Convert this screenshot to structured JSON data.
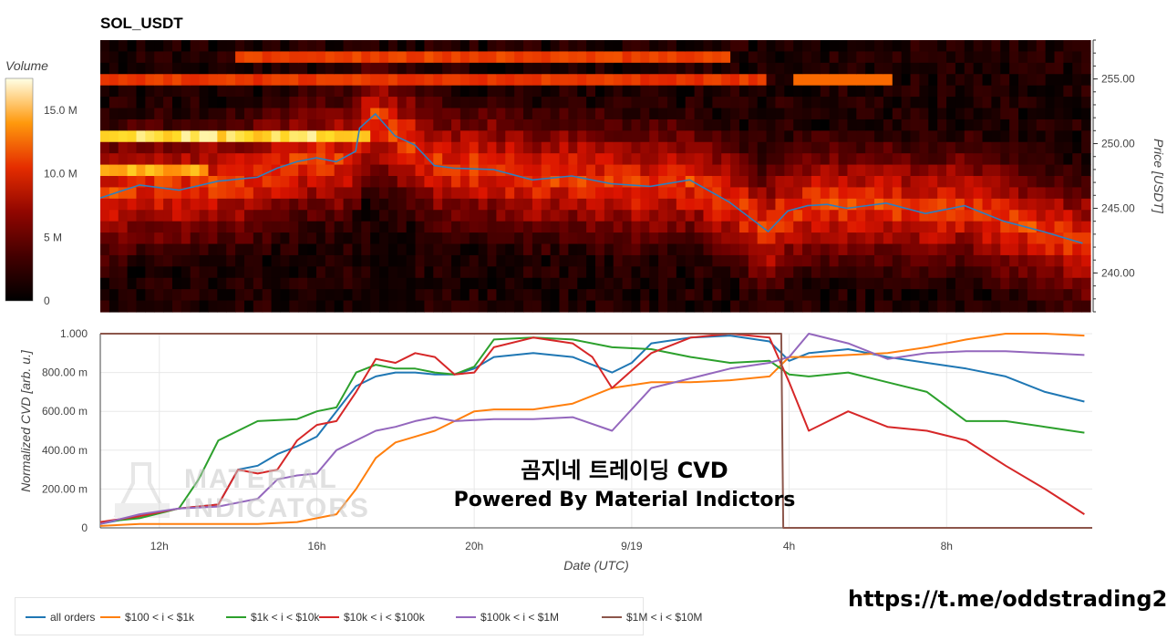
{
  "title": "SOL_USDT",
  "watermark": {
    "line1": "곰지네 트레이딩 CVD",
    "line2": "Powered By Material Indictors",
    "logo_line1": "MATERIAL",
    "logo_line2": "INDICATORS"
  },
  "link": "https://t.me/oddstrading2",
  "chart_data": [
    {
      "type": "heatmap",
      "title": "SOL_USDT",
      "ylabel": "Price [USDT]",
      "ylim": [
        237,
        258
      ],
      "yticks": [
        "240.00",
        "245.00",
        "250.00",
        "255.00"
      ],
      "yticks_values": [
        240,
        245,
        250,
        255
      ],
      "colorbar": {
        "title": "Volume",
        "ticks": [
          "0",
          "5 M",
          "10.0 M",
          "15.0 M"
        ],
        "tick_values": [
          0,
          5,
          10,
          15
        ],
        "range_millions": [
          0,
          17.5
        ]
      },
      "price_line": {
        "color": "#2e7fc0",
        "x_hours": [
          0,
          1,
          2,
          3,
          4,
          4.5,
          5,
          5.5,
          6,
          6.5,
          6.6,
          7,
          7.5,
          8,
          8.5,
          9,
          10,
          11,
          12,
          13,
          14,
          15,
          16,
          17,
          17.5,
          18,
          18.5,
          19,
          20,
          21,
          22,
          23,
          24,
          25
        ],
        "y": [
          245.8,
          246.8,
          246.4,
          247.1,
          247.4,
          248.1,
          248.6,
          248.9,
          248.6,
          249.4,
          251.2,
          252.3,
          250.6,
          249.9,
          248.3,
          248.1,
          248.0,
          247.2,
          247.5,
          246.9,
          246.7,
          247.2,
          245.5,
          243.2,
          244.8,
          245.2,
          245.3,
          245.0,
          245.4,
          244.6,
          245.2,
          244.0,
          243.2,
          242.3
        ]
      }
    },
    {
      "type": "line",
      "xlabel": "Date (UTC)",
      "ylabel": "Normalized CVD [arb. u.]",
      "ylim": [
        0,
        1
      ],
      "yticks": [
        "0",
        "200.00 m",
        "400.00 m",
        "600.00 m",
        "800.00 m",
        "1.000"
      ],
      "yticks_values": [
        0,
        0.2,
        0.4,
        0.6,
        0.8,
        1.0
      ],
      "xticks": [
        "12h",
        "16h",
        "20h",
        "9/19",
        "4h",
        "8h"
      ],
      "xticks_hours": [
        1.5,
        5.5,
        9.5,
        13.5,
        17.5,
        21.5
      ],
      "xlim_hours": [
        0,
        25.2
      ],
      "series": [
        {
          "name": "all orders",
          "color": "#1f77b4",
          "x": [
            0,
            1,
            2,
            3,
            3.5,
            4,
            4.5,
            5,
            5.5,
            6,
            6.5,
            7,
            7.5,
            8,
            8.5,
            9,
            9.5,
            10,
            11,
            12,
            13,
            13.5,
            14,
            15,
            16,
            17,
            17.5,
            18,
            19,
            20,
            21,
            22,
            23,
            24,
            25
          ],
          "y": [
            0.02,
            0.06,
            0.1,
            0.12,
            0.3,
            0.32,
            0.38,
            0.42,
            0.47,
            0.6,
            0.73,
            0.78,
            0.8,
            0.8,
            0.79,
            0.79,
            0.82,
            0.88,
            0.9,
            0.88,
            0.8,
            0.85,
            0.95,
            0.98,
            0.99,
            0.96,
            0.86,
            0.9,
            0.92,
            0.88,
            0.85,
            0.82,
            0.78,
            0.7,
            0.65
          ]
        },
        {
          "name": "$100 < i < $1k",
          "color": "#ff7f0e",
          "x": [
            0,
            1,
            2,
            3,
            4,
            5,
            5.5,
            6,
            6.5,
            7,
            7.5,
            8,
            8.5,
            9,
            9.5,
            10,
            11,
            12,
            13,
            14,
            15,
            16,
            17,
            17.5,
            18,
            19,
            20,
            21,
            22,
            23,
            24,
            25
          ],
          "y": [
            0.01,
            0.02,
            0.02,
            0.02,
            0.02,
            0.03,
            0.05,
            0.07,
            0.2,
            0.36,
            0.44,
            0.47,
            0.5,
            0.55,
            0.6,
            0.61,
            0.61,
            0.64,
            0.72,
            0.75,
            0.75,
            0.76,
            0.78,
            0.88,
            0.88,
            0.89,
            0.9,
            0.93,
            0.97,
            1.0,
            1.0,
            0.99
          ]
        },
        {
          "name": "$1k < i < $10k",
          "color": "#2ca02c",
          "x": [
            0,
            1,
            2,
            2.5,
            3,
            3.5,
            4,
            5,
            5.5,
            6,
            6.5,
            7,
            7.5,
            8,
            8.5,
            9,
            9.5,
            10,
            11,
            12,
            13,
            14,
            15,
            16,
            17,
            17.5,
            18,
            19,
            20,
            21,
            22,
            23,
            24,
            25
          ],
          "y": [
            0.03,
            0.05,
            0.1,
            0.25,
            0.45,
            0.5,
            0.55,
            0.56,
            0.6,
            0.62,
            0.8,
            0.84,
            0.82,
            0.82,
            0.8,
            0.79,
            0.83,
            0.97,
            0.98,
            0.97,
            0.93,
            0.92,
            0.88,
            0.85,
            0.86,
            0.79,
            0.78,
            0.8,
            0.75,
            0.7,
            0.55,
            0.55,
            0.52,
            0.49
          ]
        },
        {
          "name": "$10k < i < $100k",
          "color": "#d62728",
          "x": [
            0,
            1,
            2,
            3,
            3.5,
            4,
            4.5,
            5,
            5.5,
            6,
            6.5,
            7,
            7.5,
            8,
            8.5,
            9,
            9.5,
            10,
            11,
            12,
            12.5,
            13,
            14,
            15,
            16,
            17,
            17.5,
            18,
            19,
            20,
            21,
            22,
            23,
            24,
            25
          ],
          "y": [
            0.03,
            0.06,
            0.1,
            0.12,
            0.3,
            0.28,
            0.3,
            0.45,
            0.53,
            0.55,
            0.7,
            0.87,
            0.85,
            0.9,
            0.88,
            0.79,
            0.8,
            0.93,
            0.98,
            0.95,
            0.88,
            0.72,
            0.9,
            0.98,
            1.0,
            0.98,
            0.75,
            0.5,
            0.6,
            0.52,
            0.5,
            0.45,
            0.32,
            0.2,
            0.07
          ]
        },
        {
          "name": "$100k < i < $1M",
          "color": "#9467bd",
          "x": [
            0,
            1,
            2,
            3,
            4,
            4.5,
            5,
            5.5,
            6,
            6.5,
            7,
            7.5,
            8,
            8.5,
            9,
            10,
            11,
            12,
            13,
            14,
            15,
            16,
            17,
            17.5,
            18,
            19,
            20,
            21,
            22,
            23,
            24,
            25
          ],
          "y": [
            0.02,
            0.07,
            0.1,
            0.11,
            0.15,
            0.25,
            0.27,
            0.28,
            0.4,
            0.45,
            0.5,
            0.52,
            0.55,
            0.57,
            0.55,
            0.56,
            0.56,
            0.57,
            0.5,
            0.72,
            0.77,
            0.82,
            0.85,
            0.88,
            1.0,
            0.95,
            0.87,
            0.9,
            0.91,
            0.91,
            0.9,
            0.89
          ]
        },
        {
          "name": "$1M < i < $10M",
          "color": "#8c564b",
          "x": [
            0,
            17.3,
            17.35,
            25.2
          ],
          "y": [
            1.0,
            1.0,
            0.0,
            0.0
          ]
        }
      ]
    }
  ]
}
